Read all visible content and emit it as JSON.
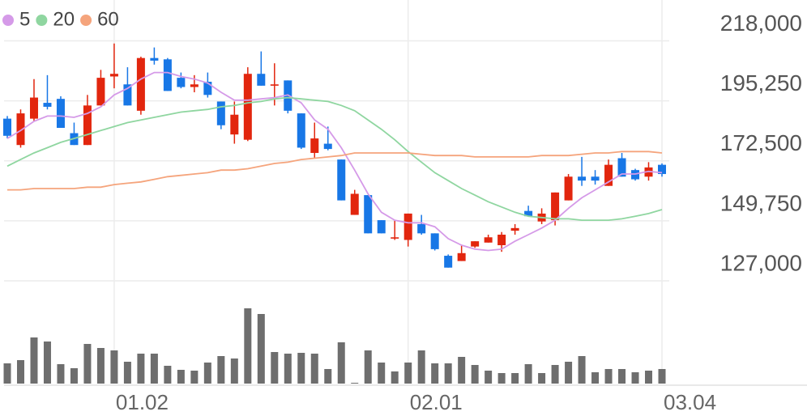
{
  "chart_data": {
    "type": "candlestick",
    "categories": [
      null,
      null,
      null,
      null,
      null,
      null,
      null,
      null,
      "01.02",
      null,
      null,
      null,
      null,
      null,
      null,
      null,
      null,
      null,
      null,
      null,
      null,
      null,
      null,
      null,
      null,
      null,
      null,
      null,
      null,
      null,
      "02.01",
      null,
      null,
      null,
      null,
      null,
      null,
      null,
      null,
      null,
      null,
      null,
      null,
      null,
      null,
      null,
      null,
      null,
      null,
      "03.04"
    ],
    "open": [
      188500,
      178500,
      188500,
      194500,
      196000,
      183000,
      178500,
      193500,
      204500,
      201500,
      191500,
      211500,
      211000,
      204000,
      200500,
      202500,
      195000,
      182500,
      180500,
      205500,
      201000,
      203000,
      190500,
      175500,
      179000,
      173000,
      152000,
      159500,
      150000,
      143000,
      142500,
      148500,
      145000,
      136500,
      134500,
      140000,
      141500,
      140500,
      146000,
      153500,
      149500,
      150000,
      157500,
      166500,
      166500,
      163000,
      173500,
      169000,
      166500,
      171000
    ],
    "high": [
      189500,
      192000,
      203500,
      205000,
      197000,
      187000,
      197500,
      207000,
      217000,
      208000,
      212000,
      215500,
      211500,
      206000,
      205000,
      206000,
      195000,
      195000,
      208000,
      214000,
      209500,
      203000,
      190500,
      187000,
      185500,
      173000,
      161500,
      159500,
      150000,
      150000,
      152500,
      152000,
      145000,
      137000,
      140500,
      142000,
      144500,
      145500,
      148500,
      155500,
      154500,
      160500,
      167500,
      174000,
      169000,
      173000,
      175500,
      169500,
      172000,
      171500
    ],
    "low": [
      181000,
      177500,
      187500,
      192000,
      185000,
      178500,
      178500,
      193500,
      200000,
      193500,
      190000,
      209000,
      199000,
      200000,
      198500,
      196500,
      184500,
      179000,
      180000,
      201000,
      193500,
      190500,
      177000,
      173500,
      176500,
      157500,
      152000,
      145000,
      145000,
      142500,
      140000,
      144500,
      138500,
      132000,
      134500,
      139500,
      141500,
      138000,
      144500,
      151500,
      148500,
      148000,
      157500,
      163000,
      163500,
      163000,
      166500,
      165000,
      165000,
      166500
    ],
    "close": [
      182000,
      190500,
      196500,
      193000,
      185000,
      178500,
      193500,
      204000,
      205500,
      193500,
      211500,
      210500,
      199000,
      200500,
      201500,
      197500,
      186000,
      190000,
      205500,
      201000,
      201500,
      191500,
      177500,
      181000,
      177000,
      157500,
      160000,
      145000,
      145000,
      143500,
      152500,
      145000,
      139000,
      132000,
      137500,
      142000,
      143500,
      144500,
      147000,
      151500,
      152500,
      160500,
      166500,
      165000,
      165000,
      171000,
      166500,
      165500,
      170000,
      167500
    ],
    "volume": [
      25,
      29,
      57,
      52,
      24,
      19,
      49,
      44,
      41,
      27,
      37,
      37,
      22,
      17,
      16,
      26,
      34,
      31,
      93,
      86,
      39,
      37,
      38,
      37,
      18,
      51,
      1,
      41,
      26,
      15,
      26,
      41,
      25,
      25,
      33,
      23,
      16,
      13,
      13,
      24,
      13,
      23,
      27,
      34,
      14,
      18,
      18,
      14,
      16,
      18
    ],
    "volume_ylim": [
      0,
      100
    ],
    "up_color": "#e2260e",
    "down_color": "#1877e6",
    "volume_color": "#6e6e6e",
    "ylim": [
      127000,
      233500
    ],
    "yticks": [
      {
        "value": 127000,
        "label": "127,000"
      },
      {
        "value": 149750,
        "label": "149,750"
      },
      {
        "value": 172500,
        "label": "172,500"
      },
      {
        "value": 195250,
        "label": "195,250"
      },
      {
        "value": 218000,
        "label": "218,000"
      }
    ],
    "grid": true,
    "series": [
      {
        "name": "5",
        "color": "#d59ae8",
        "values": [
          181000,
          184000,
          187500,
          189500,
          189500,
          189000,
          190500,
          193000,
          197500,
          200000,
          203500,
          206000,
          206000,
          204500,
          203500,
          202000,
          198500,
          195500,
          195500,
          196000,
          196500,
          197500,
          194500,
          188000,
          184500,
          177500,
          169000,
          160000,
          153000,
          150000,
          149000,
          149000,
          147500,
          143000,
          140500,
          139000,
          138500,
          139000,
          142000,
          144500,
          147000,
          150000,
          154500,
          158500,
          161500,
          164500,
          167500,
          167500,
          168500,
          168000
        ]
      },
      {
        "name": "20",
        "color": "#8fd6a0",
        "values": [
          170500,
          173000,
          175500,
          177500,
          179500,
          181000,
          182500,
          184000,
          185500,
          187000,
          188000,
          189000,
          190000,
          191000,
          191500,
          192000,
          193000,
          193500,
          194500,
          195000,
          196000,
          196500,
          196000,
          195500,
          195000,
          193500,
          191500,
          188000,
          184500,
          180500,
          176000,
          172000,
          168000,
          165000,
          162000,
          159500,
          157000,
          155000,
          153000,
          151500,
          151000,
          150500,
          150500,
          150000,
          150000,
          150000,
          150500,
          151500,
          152500,
          154000
        ]
      },
      {
        "name": "60",
        "color": "#f5a47c",
        "values": [
          161500,
          161500,
          162000,
          162000,
          162000,
          162000,
          162500,
          162500,
          163500,
          164000,
          164500,
          165500,
          166500,
          167000,
          167500,
          168000,
          169000,
          169000,
          169500,
          170500,
          171500,
          172000,
          173000,
          173500,
          174000,
          174500,
          175500,
          175500,
          175500,
          175500,
          175500,
          175000,
          174500,
          174500,
          174500,
          174000,
          174000,
          174000,
          174000,
          174000,
          174500,
          174500,
          174500,
          175000,
          175500,
          175500,
          176000,
          176000,
          176000,
          175500
        ]
      }
    ]
  }
}
